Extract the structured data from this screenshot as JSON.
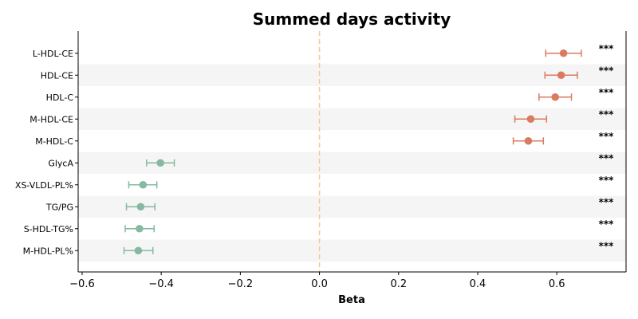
{
  "chart_data": {
    "type": "forest",
    "title": "Summed days activity",
    "xlabel": "Beta",
    "ylabel": "",
    "xlim": [
      -0.61,
      0.775
    ],
    "xticks": [
      -0.6,
      -0.4,
      -0.2,
      0.0,
      0.2,
      0.4,
      0.6
    ],
    "xtick_labels": [
      "−0.6",
      "−0.4",
      "−0.2",
      "0.0",
      "0.2",
      "0.4",
      "0.6"
    ],
    "reference_line": 0.0,
    "grid": false,
    "row_shading": true,
    "colors": {
      "positive": "#D97B5F",
      "negative": "#86B9A1",
      "reference": "#F5C88A",
      "stripe": "#F5F5F5"
    },
    "items": [
      {
        "label": "L-HDL-CE",
        "beta": 0.617,
        "ci": [
          0.572,
          0.662
        ],
        "significance": "***"
      },
      {
        "label": "HDL-CE",
        "beta": 0.611,
        "ci": [
          0.57,
          0.652
        ],
        "significance": "***"
      },
      {
        "label": "HDL-C",
        "beta": 0.596,
        "ci": [
          0.555,
          0.637
        ],
        "significance": "***"
      },
      {
        "label": "M-HDL-CE",
        "beta": 0.534,
        "ci": [
          0.494,
          0.574
        ],
        "significance": "***"
      },
      {
        "label": "M-HDL-C",
        "beta": 0.528,
        "ci": [
          0.49,
          0.566
        ],
        "significance": "***"
      },
      {
        "label": "GlycA",
        "beta": -0.402,
        "ci": [
          -0.437,
          -0.367
        ],
        "significance": "***"
      },
      {
        "label": "XS-VLDL-PL%",
        "beta": -0.446,
        "ci": [
          -0.482,
          -0.411
        ],
        "significance": "***"
      },
      {
        "label": "TG/PG",
        "beta": -0.452,
        "ci": [
          -0.488,
          -0.416
        ],
        "significance": "***"
      },
      {
        "label": "S-HDL-TG%",
        "beta": -0.455,
        "ci": [
          -0.491,
          -0.418
        ],
        "significance": "***"
      },
      {
        "label": "M-HDL-PL%",
        "beta": -0.458,
        "ci": [
          -0.494,
          -0.421
        ],
        "significance": "***"
      }
    ]
  }
}
